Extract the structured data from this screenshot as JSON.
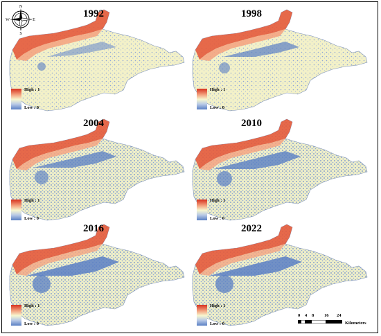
{
  "panels": [
    {
      "year": "1992"
    },
    {
      "year": "1998"
    },
    {
      "year": "2004"
    },
    {
      "year": "2010"
    },
    {
      "year": "2016"
    },
    {
      "year": "2022"
    }
  ],
  "legend": {
    "high_label": "High : 1",
    "low_label": "Low : 0"
  },
  "colors": {
    "high": "#d7301f",
    "mid": "#f7f7d0",
    "low": "#5a7fc4"
  },
  "compass": {
    "north": "N",
    "south": "S",
    "east": "E",
    "west": "W"
  },
  "scale_bar": {
    "ticks": [
      "0",
      "4",
      "8",
      "16",
      "24"
    ],
    "unit": "Kilometers"
  }
}
